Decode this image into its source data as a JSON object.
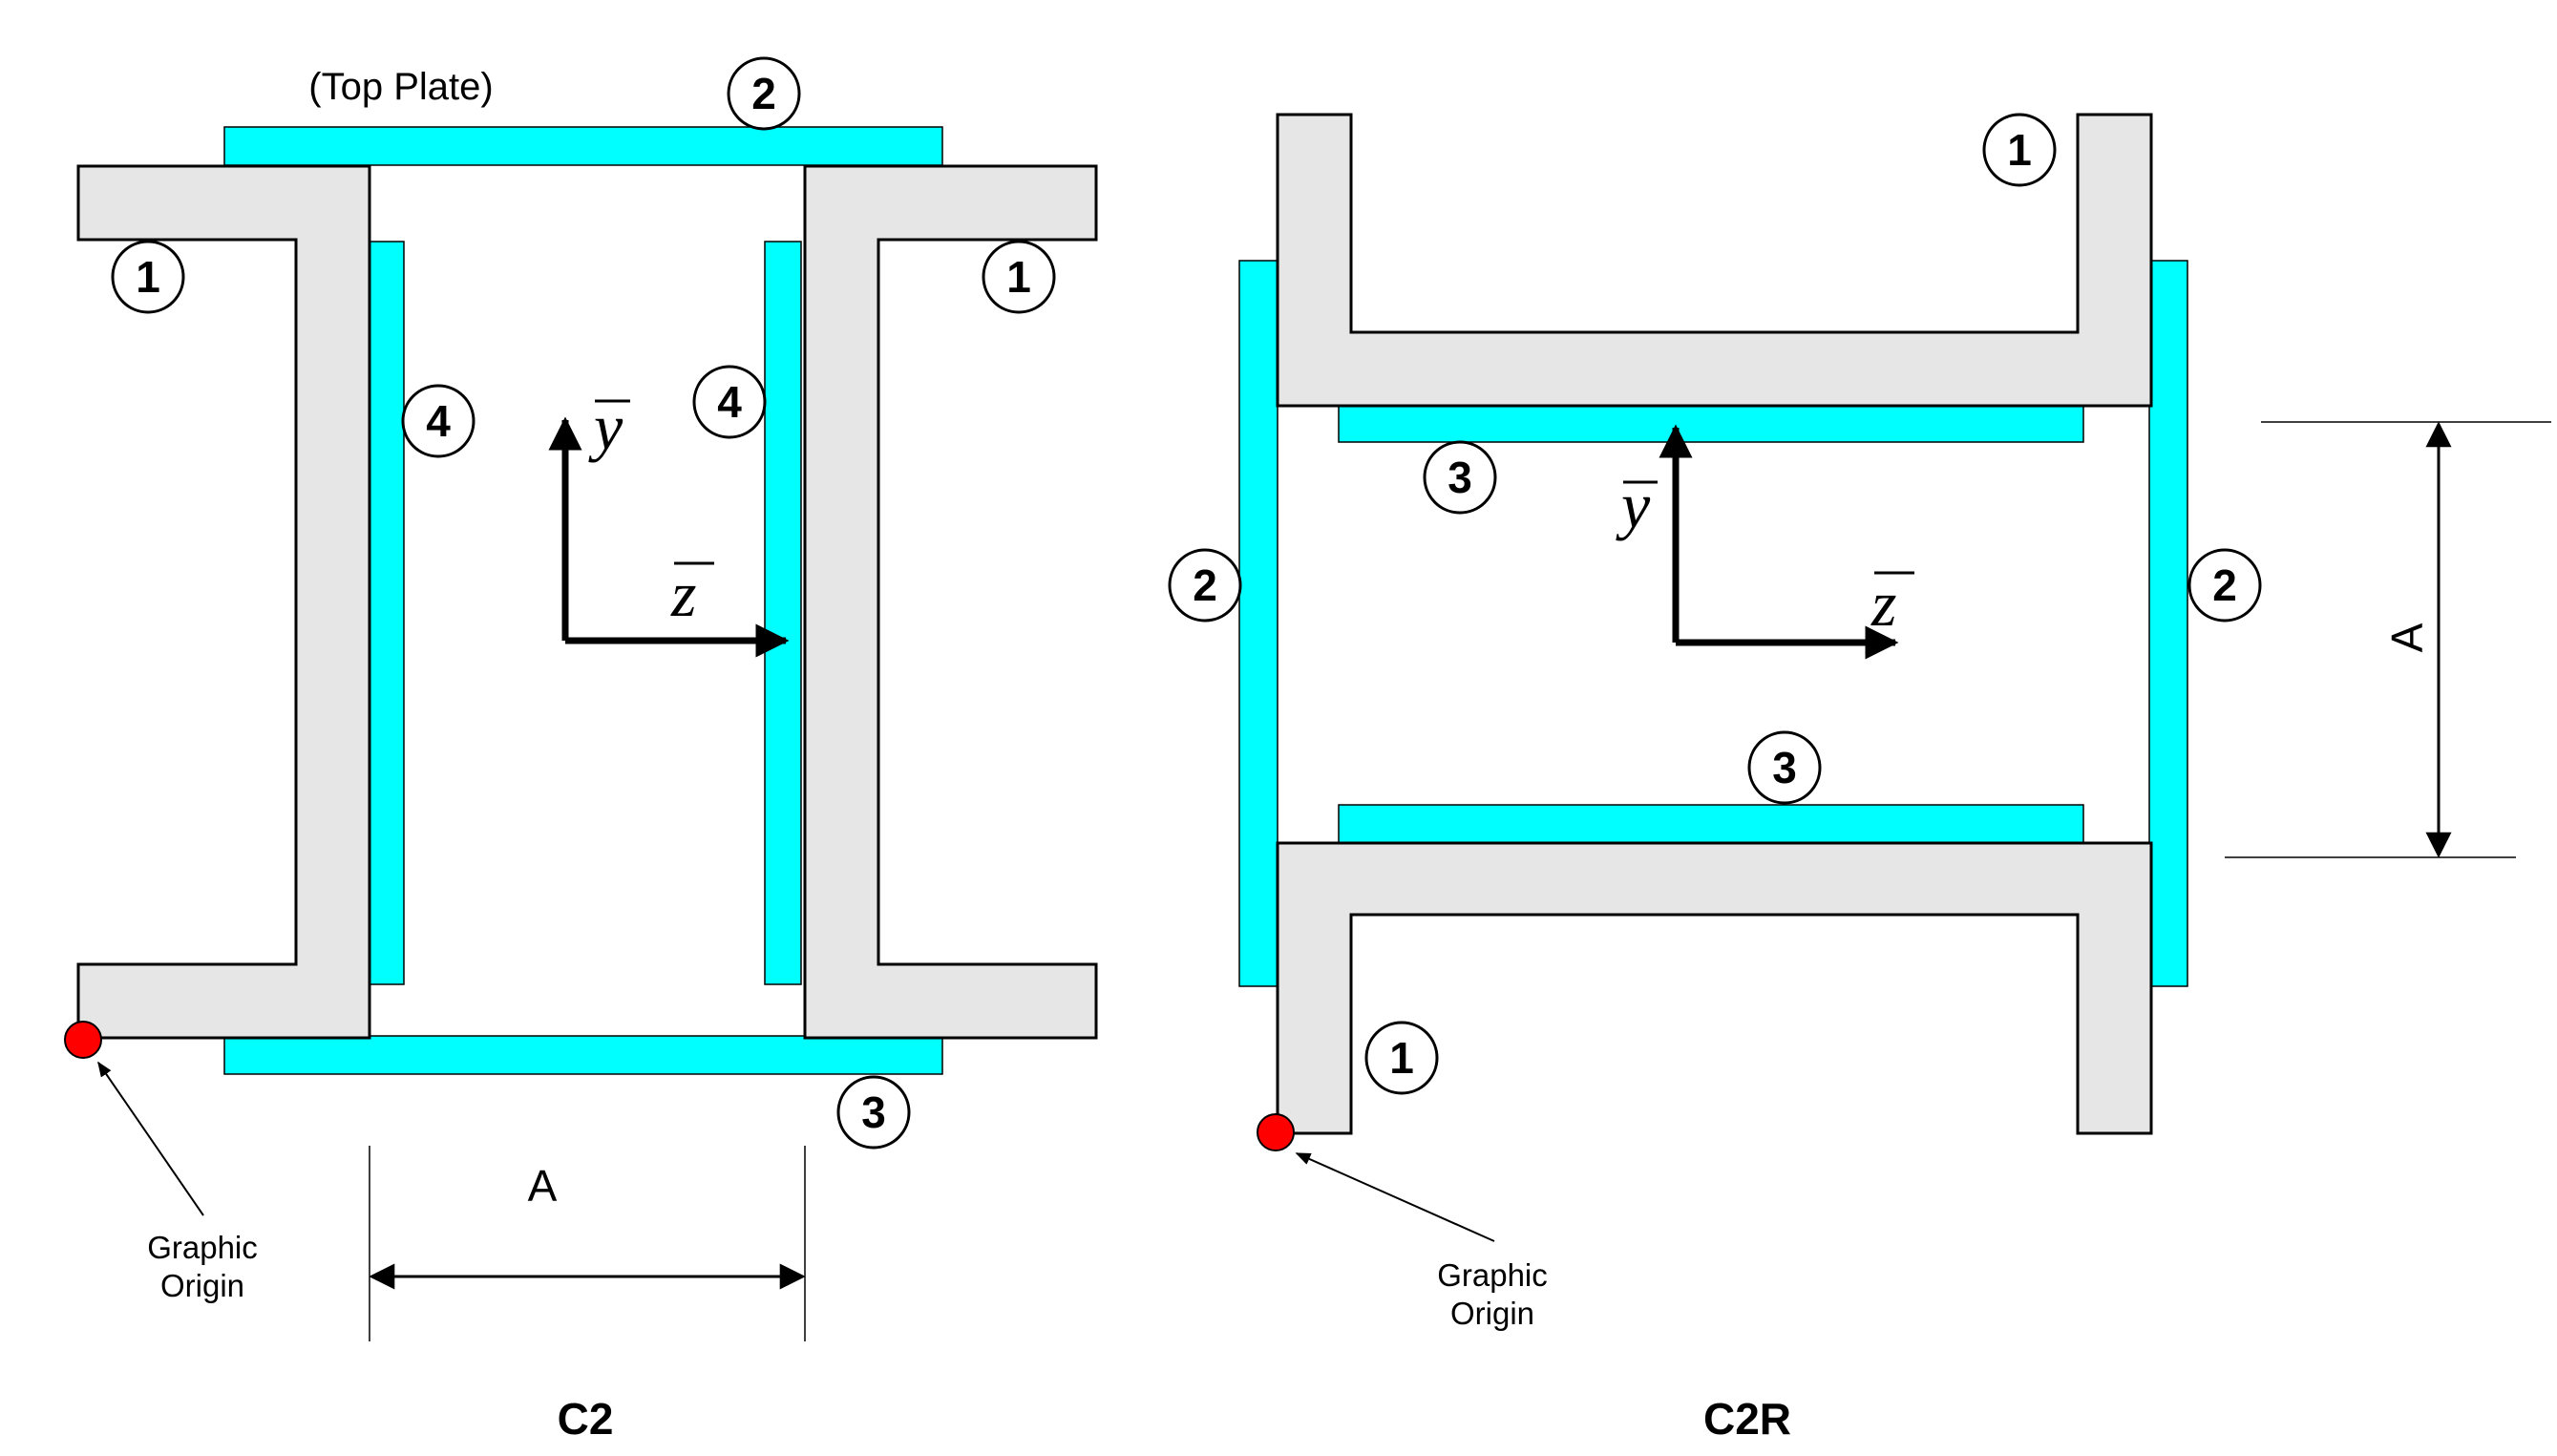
{
  "colors": {
    "steel": "#e6e6e6",
    "plate": "#00ffff",
    "origin": "#ff0000",
    "ink": "#000000"
  },
  "c2": {
    "caption": "C2",
    "top_plate_label": "(Top Plate)",
    "dimension_label": "A",
    "origin_label_line1": "Graphic",
    "origin_label_line2": "Origin",
    "axis_y": "y",
    "axis_z": "z",
    "markers": {
      "m1": "1",
      "m2": "2",
      "m3": "3",
      "m4": "4"
    }
  },
  "c2r": {
    "caption": "C2R",
    "dimension_label": "A",
    "origin_label_line1": "Graphic",
    "origin_label_line2": "Origin",
    "axis_y": "y",
    "axis_z": "z",
    "markers": {
      "m1": "1",
      "m2": "2",
      "m3": "3"
    }
  }
}
